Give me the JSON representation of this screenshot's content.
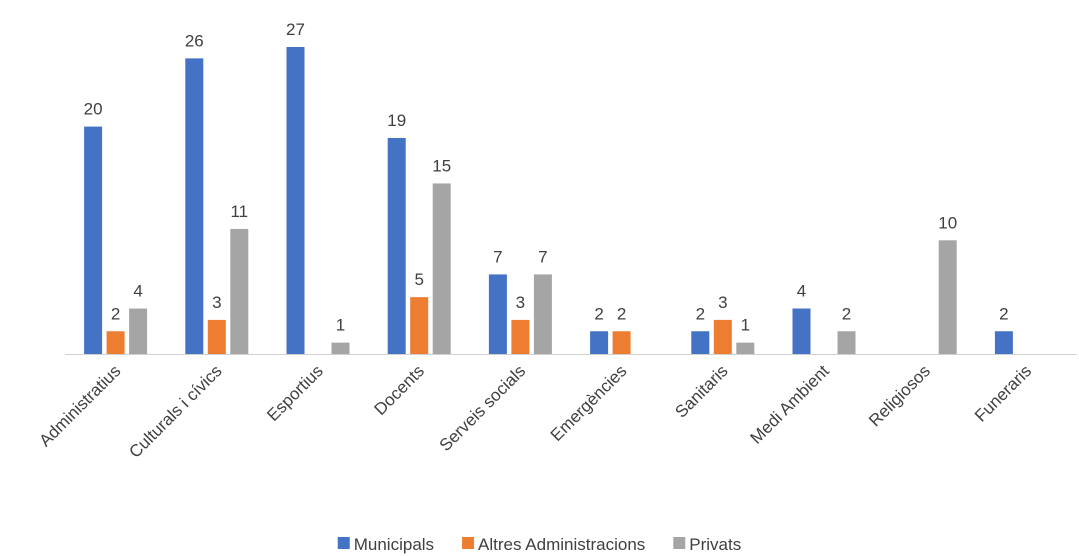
{
  "chart_data": {
    "type": "bar",
    "categories": [
      "Administratius",
      "Culturals i cívics",
      "Esportius",
      "Docents",
      "Serveis socials",
      "Emergències",
      "Sanitaris",
      "Medi Ambient",
      "Religiosos",
      "Funeraris"
    ],
    "series": [
      {
        "name": "Municipals",
        "color": "#4472c4",
        "values": [
          20,
          26,
          27,
          19,
          7,
          2,
          2,
          4,
          null,
          2
        ]
      },
      {
        "name": "Altres Administracions",
        "color": "#ed7d31",
        "values": [
          2,
          3,
          null,
          5,
          3,
          2,
          3,
          null,
          null,
          null
        ]
      },
      {
        "name": "Privats",
        "color": "#a5a5a5",
        "values": [
          4,
          11,
          1,
          15,
          7,
          null,
          1,
          2,
          10,
          null
        ]
      }
    ],
    "legend": "bottom"
  }
}
